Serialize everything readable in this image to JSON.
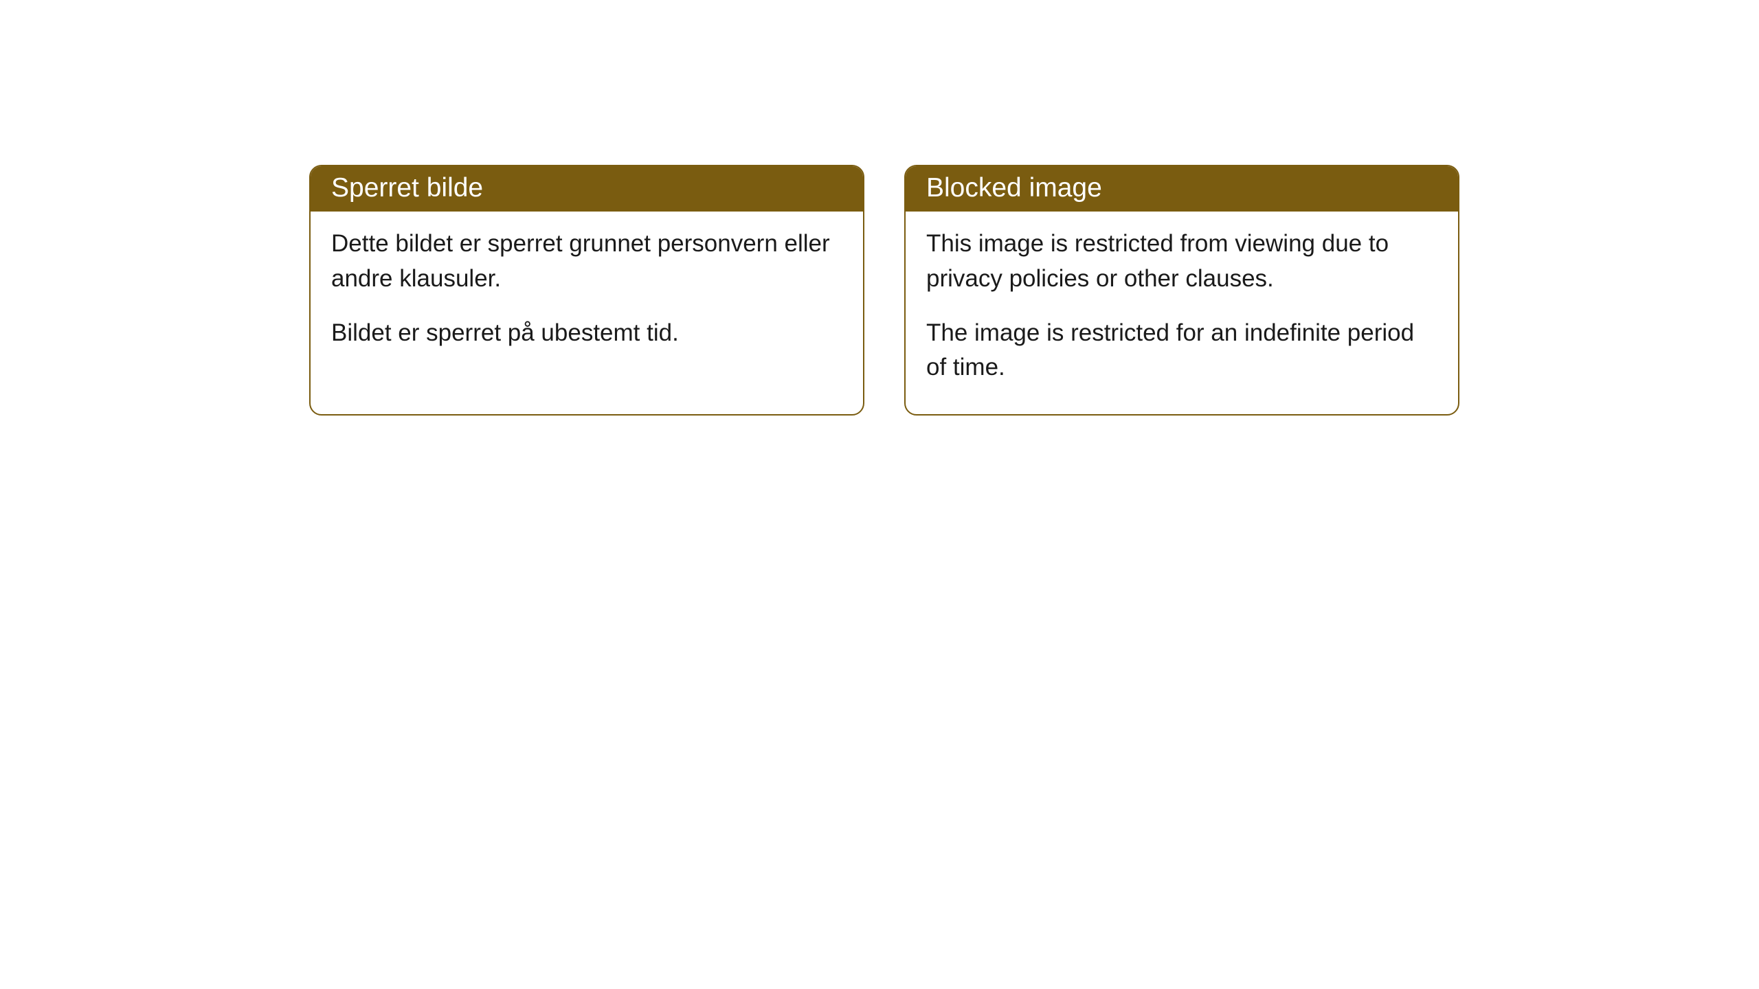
{
  "cards": [
    {
      "title": "Sperret bilde",
      "paragraph1": "Dette bildet er sperret grunnet personvern eller andre klausuler.",
      "paragraph2": "Bildet er sperret på ubestemt tid."
    },
    {
      "title": "Blocked image",
      "paragraph1": "This image is restricted from viewing due to privacy policies or other clauses.",
      "paragraph2": "The image is restricted for an indefinite period of time."
    }
  ],
  "styles": {
    "header_bg_color": "#7a5c10",
    "header_text_color": "#ffffff",
    "border_color": "#7a5c10",
    "body_text_color": "#1a1a1a",
    "background_color": "#ffffff",
    "border_radius": 18,
    "header_fontsize": 39,
    "body_fontsize": 35
  }
}
